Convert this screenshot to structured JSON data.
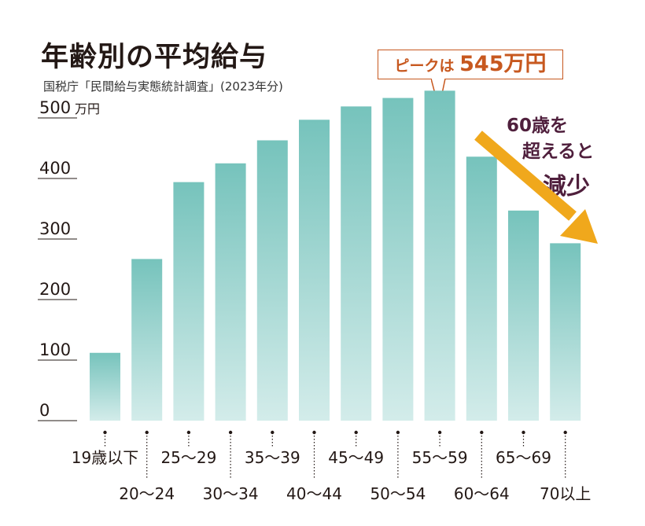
{
  "title": "年齢別の平均給与",
  "source": "国税庁「民間給与実態統計調査」(2023年分)",
  "callout": {
    "prefix": "ピークは",
    "value": "545",
    "unit": "万円"
  },
  "annotation": {
    "line1": "60歳を",
    "line2": "超えると",
    "line3": "減少"
  },
  "colors": {
    "bar_top": "#76c3bc",
    "bar_bottom": "#d3ecea",
    "callout": "#c7581f",
    "arrow": "#f0a81c",
    "annotation": "#4f1f3c"
  },
  "chart_data": {
    "type": "bar",
    "categories": [
      "19歳以下",
      "20～24",
      "25～29",
      "30～34",
      "35～39",
      "40～44",
      "45～49",
      "50～54",
      "55～59",
      "60～64",
      "65～69",
      "70以上"
    ],
    "values": [
      112,
      267,
      394,
      425,
      463,
      497,
      519,
      533,
      545,
      436,
      347,
      293
    ],
    "ylim": [
      0,
      500
    ],
    "yticks": [
      "0",
      "100",
      "200",
      "300",
      "400",
      "500"
    ],
    "yunit": "万円",
    "grid": false,
    "title": "年齢別の平均給与"
  }
}
